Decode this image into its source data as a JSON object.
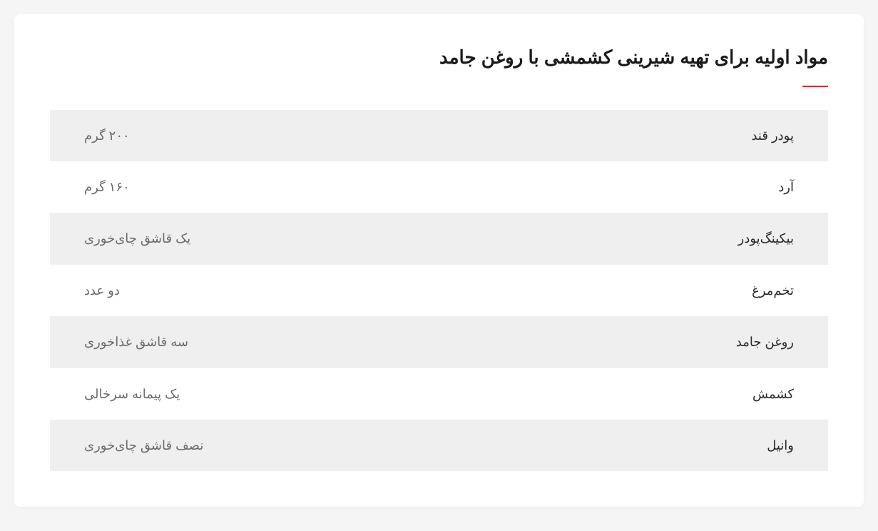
{
  "heading": "مواد اولیه برای تهیه شیرینی کشمشی با روغن جامد",
  "accent_color": "#d32f2f",
  "table": {
    "row_bg_odd": "#efefef",
    "row_bg_even": "#ffffff",
    "name_color": "#2a2a2a",
    "amount_color": "#6b6b6b",
    "font_size": 18,
    "rows": [
      {
        "name": "پودر قند",
        "amount": "۲۰۰ گرم"
      },
      {
        "name": "آرد",
        "amount": "۱۶۰ گرم"
      },
      {
        "name": "بیکینگ‌پودر",
        "amount": "یک قاشق چای‌خوری"
      },
      {
        "name": "تخم‌مرغ",
        "amount": "دو عدد"
      },
      {
        "name": "روغن جامد",
        "amount": "سه قاشق غذاخوری"
      },
      {
        "name": "کشمش",
        "amount": "یک پیمانه سرخالی"
      },
      {
        "name": "وانیل",
        "amount": "نصف قاشق چای‌خوری"
      }
    ]
  }
}
